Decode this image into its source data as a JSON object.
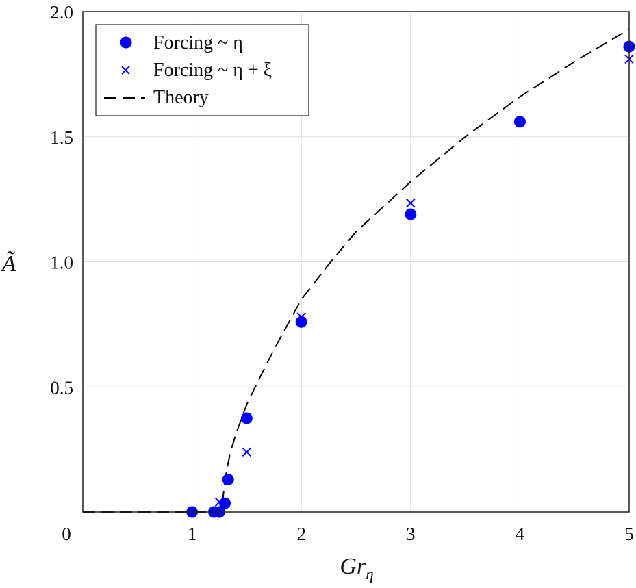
{
  "chart_data": {
    "type": "scatter",
    "title": "",
    "xlabel": "Gr",
    "xlabel_subscript": "η",
    "ylabel": "Ã",
    "xlim": [
      0,
      5
    ],
    "ylim": [
      0,
      2.0
    ],
    "x_scale": "piecewise: linear 0–1 and 1–2 (each unit 1/6 of axis width), then 2–5 at 1/6 per unit",
    "x_ticks": [
      {
        "value": 0,
        "label": "0"
      },
      {
        "value": 1,
        "label": "1"
      },
      {
        "value": 2,
        "label": "2"
      },
      {
        "value": 3,
        "label": "3"
      },
      {
        "value": 4,
        "label": "4"
      },
      {
        "value": 5,
        "label": "5"
      }
    ],
    "y_ticks": [
      {
        "value": 0.5,
        "label": "0.5"
      },
      {
        "value": 1.0,
        "label": "1.0"
      },
      {
        "value": 1.5,
        "label": "1.5"
      },
      {
        "value": 2.0,
        "label": "2.0"
      }
    ],
    "grid": true,
    "legend_position": "top-left",
    "series": [
      {
        "name": "Forcing ~ η",
        "marker": "circle",
        "color": "#0000ff",
        "points": [
          {
            "x": 1.0,
            "y": 0.0
          },
          {
            "x": 1.2,
            "y": 0.0
          },
          {
            "x": 1.25,
            "y": 0.0
          },
          {
            "x": 1.3,
            "y": 0.035
          },
          {
            "x": 1.33,
            "y": 0.13
          },
          {
            "x": 1.5,
            "y": 0.375
          },
          {
            "x": 2.0,
            "y": 0.76
          },
          {
            "x": 3.0,
            "y": 1.19
          },
          {
            "x": 4.0,
            "y": 1.56
          },
          {
            "x": 5.0,
            "y": 1.86
          }
        ]
      },
      {
        "name": "Forcing ~ η + ξ",
        "marker": "x",
        "color": "#0000ff",
        "points": [
          {
            "x": 1.0,
            "y": 0.0
          },
          {
            "x": 1.25,
            "y": 0.04
          },
          {
            "x": 1.5,
            "y": 0.24
          },
          {
            "x": 2.0,
            "y": 0.78
          },
          {
            "x": 3.0,
            "y": 1.235
          },
          {
            "x": 5.0,
            "y": 1.81
          }
        ]
      },
      {
        "name": "Theory",
        "marker": "dashed-line",
        "color": "#000000",
        "points": [
          {
            "x": 0.0,
            "y": 0.0
          },
          {
            "x": 1.27,
            "y": 0.0
          },
          {
            "x": 1.3,
            "y": 0.13
          },
          {
            "x": 1.35,
            "y": 0.24
          },
          {
            "x": 1.4,
            "y": 0.31
          },
          {
            "x": 1.5,
            "y": 0.43
          },
          {
            "x": 1.6,
            "y": 0.52
          },
          {
            "x": 1.75,
            "y": 0.65
          },
          {
            "x": 2.0,
            "y": 0.85
          },
          {
            "x": 2.25,
            "y": 0.99
          },
          {
            "x": 2.5,
            "y": 1.12
          },
          {
            "x": 3.0,
            "y": 1.32
          },
          {
            "x": 3.5,
            "y": 1.5
          },
          {
            "x": 4.0,
            "y": 1.66
          },
          {
            "x": 4.5,
            "y": 1.8
          },
          {
            "x": 5.0,
            "y": 1.93
          }
        ]
      }
    ]
  }
}
